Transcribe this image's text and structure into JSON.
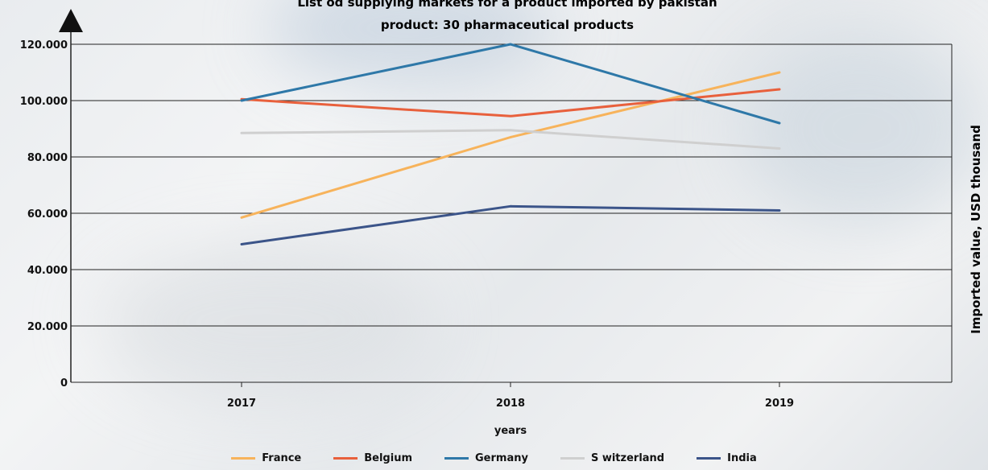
{
  "chart_data": {
    "type": "line",
    "title": "List od supplying markets for a product imported by pakistan",
    "subtitle": "product: 30 pharmaceutical products",
    "xlabel": "years",
    "ylabel": "Imported value, USD thousand",
    "x": [
      "2017",
      "2018",
      "2019"
    ],
    "ylim": [
      0,
      120000
    ],
    "yticks": [
      "0",
      "20.000",
      "40.000",
      "60.000",
      "80.000",
      "100.000",
      "120.000"
    ],
    "grid": true,
    "legend_position": "bottom",
    "series": [
      {
        "name": "France",
        "color": "#f7b35b",
        "values": [
          58500,
          87000,
          110000
        ]
      },
      {
        "name": "Belgium",
        "color": "#e8603c",
        "values": [
          100500,
          94500,
          104000
        ]
      },
      {
        "name": "Germany",
        "color": "#2e78a8",
        "values": [
          100000,
          120000,
          92000
        ]
      },
      {
        "name": "S witzerland",
        "color": "#cfcfcf",
        "values": [
          88500,
          89500,
          83000
        ]
      },
      {
        "name": "India",
        "color": "#3b5489",
        "values": [
          49000,
          62500,
          61000
        ]
      }
    ]
  }
}
